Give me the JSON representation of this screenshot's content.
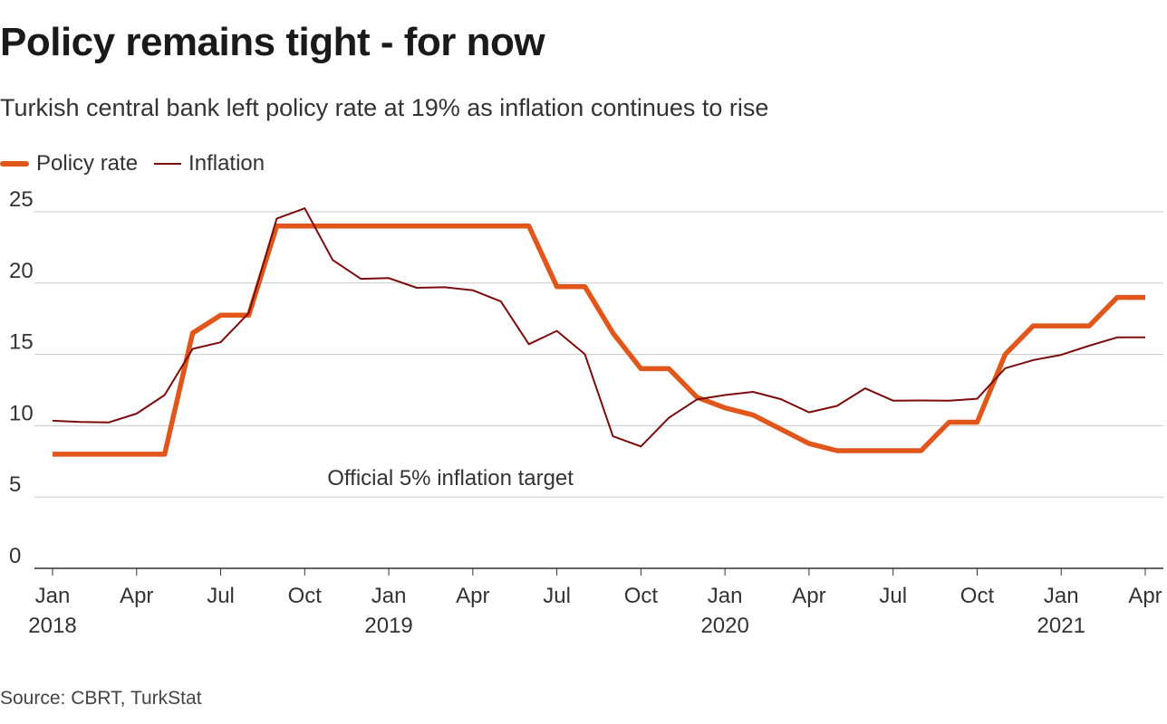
{
  "chart_data": {
    "type": "line",
    "title": "Policy remains tight - for now",
    "subtitle": "Turkish central bank left policy rate at 19% as inflation continues to rise",
    "source": "Source: CBRT, TurkStat",
    "annotation": "Official 5% inflation target",
    "x": [
      "2018-01",
      "2018-02",
      "2018-03",
      "2018-04",
      "2018-05",
      "2018-06",
      "2018-07",
      "2018-08",
      "2018-09",
      "2018-10",
      "2018-11",
      "2018-12",
      "2019-01",
      "2019-02",
      "2019-03",
      "2019-04",
      "2019-05",
      "2019-06",
      "2019-07",
      "2019-08",
      "2019-09",
      "2019-10",
      "2019-11",
      "2019-12",
      "2020-01",
      "2020-02",
      "2020-03",
      "2020-04",
      "2020-05",
      "2020-06",
      "2020-07",
      "2020-08",
      "2020-09",
      "2020-10",
      "2020-11",
      "2020-12",
      "2021-01",
      "2021-02",
      "2021-03",
      "2021-04"
    ],
    "series": [
      {
        "name": "Policy rate",
        "color": "#e0561b",
        "values": [
          8,
          8,
          8,
          8,
          8,
          16.5,
          17.75,
          17.75,
          24,
          24,
          24,
          24,
          24,
          24,
          24,
          24,
          24,
          24,
          19.75,
          19.75,
          16.5,
          14,
          14,
          12,
          11.25,
          10.75,
          9.75,
          8.75,
          8.25,
          8.25,
          8.25,
          8.25,
          10.25,
          10.25,
          15,
          17,
          17,
          17,
          19,
          19
        ]
      },
      {
        "name": "Inflation",
        "color": "#7a0c0c",
        "values": [
          10.35,
          10.26,
          10.23,
          10.85,
          12.15,
          15.39,
          15.85,
          17.9,
          24.52,
          25.24,
          21.62,
          20.3,
          20.35,
          19.67,
          19.71,
          19.5,
          18.71,
          15.72,
          16.65,
          15.01,
          9.26,
          8.55,
          10.56,
          11.84,
          12.15,
          12.37,
          11.86,
          10.94,
          11.39,
          12.62,
          11.76,
          11.77,
          11.75,
          11.89,
          14.03,
          14.6,
          14.97,
          15.61,
          16.19,
          16.19
        ]
      }
    ],
    "ylim": [
      0,
      25
    ],
    "yticks": [
      0,
      5,
      10,
      15,
      20,
      25
    ],
    "xticks": [
      {
        "index": 0,
        "label": "Jan",
        "year": "2018"
      },
      {
        "index": 3,
        "label": "Apr",
        "year": ""
      },
      {
        "index": 6,
        "label": "Jul",
        "year": ""
      },
      {
        "index": 9,
        "label": "Oct",
        "year": ""
      },
      {
        "index": 12,
        "label": "Jan",
        "year": "2019"
      },
      {
        "index": 15,
        "label": "Apr",
        "year": ""
      },
      {
        "index": 18,
        "label": "Jul",
        "year": ""
      },
      {
        "index": 21,
        "label": "Oct",
        "year": ""
      },
      {
        "index": 24,
        "label": "Jan",
        "year": "2020"
      },
      {
        "index": 27,
        "label": "Apr",
        "year": ""
      },
      {
        "index": 30,
        "label": "Jul",
        "year": ""
      },
      {
        "index": 33,
        "label": "Oct",
        "year": ""
      },
      {
        "index": 36,
        "label": "Jan",
        "year": "2021"
      },
      {
        "index": 39,
        "label": "Apr",
        "year": ""
      }
    ],
    "grid": true,
    "legend_position": "top-left"
  }
}
